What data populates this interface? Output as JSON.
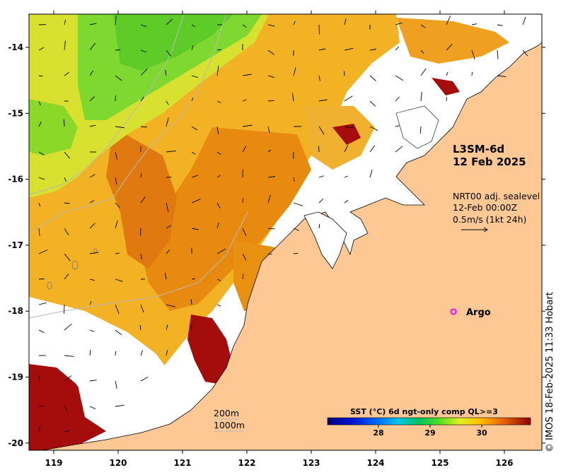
{
  "map": {
    "title": "L3SM-6d",
    "date": "12 Feb 2025",
    "currents": {
      "line1": "NRT00 adj. sealevel",
      "line2": "12-Feb 00:00Z",
      "line3": "0.5m/s (1kt 24h)"
    },
    "argo_label": "Argo",
    "isobath_200": "200m",
    "isobath_1000": "1000m",
    "colorbar": {
      "title": "SST (°C) 6d ngt-only comp QL>=3",
      "ticks": [
        "28",
        "29",
        "30"
      ]
    },
    "credit": "© IMOS 18-Feb-2025 11:33 Hobart",
    "x_ticks": [
      "119",
      "120",
      "121",
      "122",
      "123",
      "124",
      "125",
      "126"
    ],
    "y_ticks": [
      "-14",
      "-15",
      "-16",
      "-17",
      "-18",
      "-19",
      "-20"
    ],
    "colors": {
      "land": "#fec895",
      "ocean_nodata": "#ffffff",
      "argo": "#ff00ff"
    }
  }
}
